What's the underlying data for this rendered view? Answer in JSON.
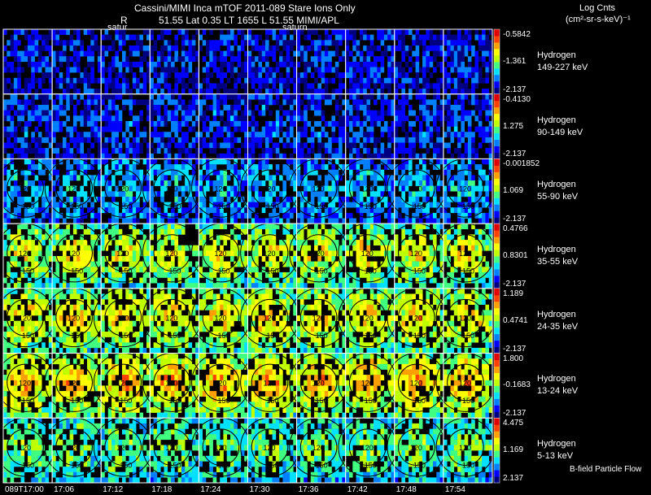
{
  "header": {
    "title": "Cassini/MIMI Inca mTOF  2011-089   Stare   Ions Only",
    "r_label": "R",
    "info": "51.55 Lat 0.35 LT 1655 L        51.55  MIMI/APL",
    "saturn_left": "satur",
    "saturn_mid": "saturn",
    "units_title": "Log Cnts",
    "units": "(cm²-sr-s-keV)⁻¹"
  },
  "footer": {
    "flow_label": "B-field Particle Flow"
  },
  "colormap": [
    "#000080",
    "#0000ff",
    "#0080ff",
    "#00e0ff",
    "#40ff80",
    "#c0ff00",
    "#ffff00",
    "#ffa000",
    "#ff4000",
    "#e00000"
  ],
  "chart_data": {
    "type": "heatmap",
    "time_labels": [
      "089T17:00",
      "17:06",
      "17:12",
      "17:18",
      "17:24",
      "17:30",
      "17:36",
      "17:42",
      "17:48",
      "17:54"
    ],
    "rows": [
      {
        "species": "Hydrogen",
        "energy": "149-227 keV",
        "cb_max": "-0.5842",
        "cb_mid": "-1.361",
        "cb_min": "-2.137",
        "level": 0.18
      },
      {
        "species": "Hydrogen",
        "energy": "90-149 keV",
        "cb_max": "-0.4130",
        "cb_mid": "1.275",
        "cb_min": "-2.137",
        "level": 0.22
      },
      {
        "species": "Hydrogen",
        "energy": "55-90 keV",
        "cb_max": "-0.001852",
        "cb_mid": "1.069",
        "cb_min": "-2.137",
        "level": 0.35
      },
      {
        "species": "Hydrogen",
        "energy": "35-55 keV",
        "cb_max": "0.4766",
        "cb_mid": "0.8301",
        "cb_min": "-2.137",
        "level": 0.68
      },
      {
        "species": "Hydrogen",
        "energy": "24-35 keV",
        "cb_max": "1.189",
        "cb_mid": "0.4741",
        "cb_min": "-2.137",
        "level": 0.72
      },
      {
        "species": "Hydrogen",
        "energy": "13-24 keV",
        "cb_max": "1.800",
        "cb_mid": "-0.1683",
        "cb_min": "-2.137",
        "level": 0.78
      },
      {
        "species": "Hydrogen",
        "energy": "5-13 keV",
        "cb_max": "4.475",
        "cb_mid": "1.169",
        "cb_min": "2.137",
        "level": 0.55
      }
    ],
    "contour_labels": [
      "120",
      "150"
    ]
  }
}
